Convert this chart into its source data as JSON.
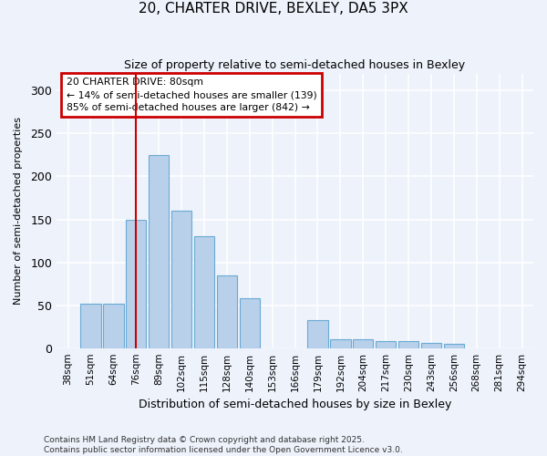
{
  "title": "20, CHARTER DRIVE, BEXLEY, DA5 3PX",
  "subtitle": "Size of property relative to semi-detached houses in Bexley",
  "xlabel": "Distribution of semi-detached houses by size in Bexley",
  "ylabel": "Number of semi-detached properties",
  "categories": [
    "38sqm",
    "51sqm",
    "64sqm",
    "76sqm",
    "89sqm",
    "102sqm",
    "115sqm",
    "128sqm",
    "140sqm",
    "153sqm",
    "166sqm",
    "179sqm",
    "192sqm",
    "204sqm",
    "217sqm",
    "230sqm",
    "243sqm",
    "256sqm",
    "268sqm",
    "281sqm",
    "294sqm"
  ],
  "values": [
    0,
    52,
    52,
    150,
    225,
    160,
    130,
    85,
    58,
    0,
    0,
    33,
    10,
    10,
    8,
    8,
    6,
    5,
    0,
    0,
    0
  ],
  "bar_color": "#b8d0ea",
  "bar_edge_color": "#6aaad4",
  "red_line_x": 3,
  "highlight_color": "#cc0000",
  "annotation_title": "20 CHARTER DRIVE: 80sqm",
  "annotation_line1": "← 14% of semi-detached houses are smaller (139)",
  "annotation_line2": "85% of semi-detached houses are larger (842) →",
  "annotation_box_color": "#cc0000",
  "ylim": [
    0,
    320
  ],
  "yticks": [
    0,
    50,
    100,
    150,
    200,
    250,
    300
  ],
  "background_color": "#edf2fb",
  "grid_color": "#ffffff",
  "footer_line1": "Contains HM Land Registry data © Crown copyright and database right 2025.",
  "footer_line2": "Contains public sector information licensed under the Open Government Licence v3.0."
}
